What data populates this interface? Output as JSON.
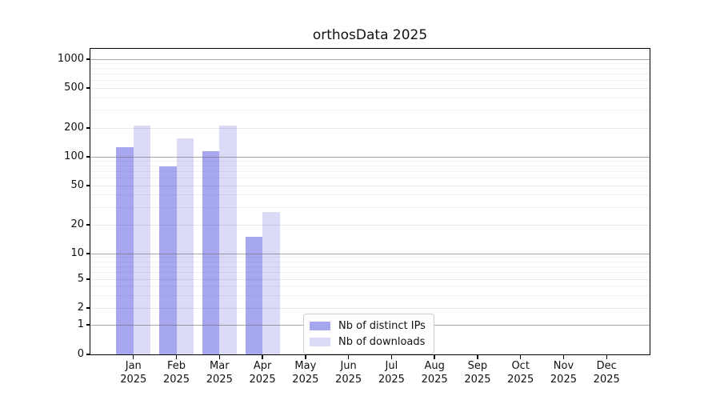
{
  "title": "orthosData 2025",
  "chart_data": {
    "type": "bar",
    "title": "orthosData 2025",
    "categories": [
      "Jan",
      "Feb",
      "Mar",
      "Apr",
      "May",
      "Jun",
      "Jul",
      "Aug",
      "Sep",
      "Oct",
      "Nov",
      "Dec"
    ],
    "category_year": "2025",
    "series": [
      {
        "name": "Nb of distinct IPs",
        "color": "#a7a7f0",
        "values": [
          125,
          80,
          115,
          15,
          null,
          null,
          null,
          null,
          null,
          null,
          null,
          null
        ]
      },
      {
        "name": "Nb of downloads",
        "color": "#dbdbf8",
        "values": [
          210,
          155,
          210,
          27,
          null,
          null,
          null,
          null,
          null,
          null,
          null,
          null
        ]
      }
    ],
    "y_axis": {
      "scale": "symlog",
      "ticks": [
        0,
        1,
        2,
        5,
        10,
        20,
        50,
        100,
        200,
        500,
        1000
      ]
    },
    "grid": "horizontal",
    "legend_position": "inside-bottom-center"
  }
}
